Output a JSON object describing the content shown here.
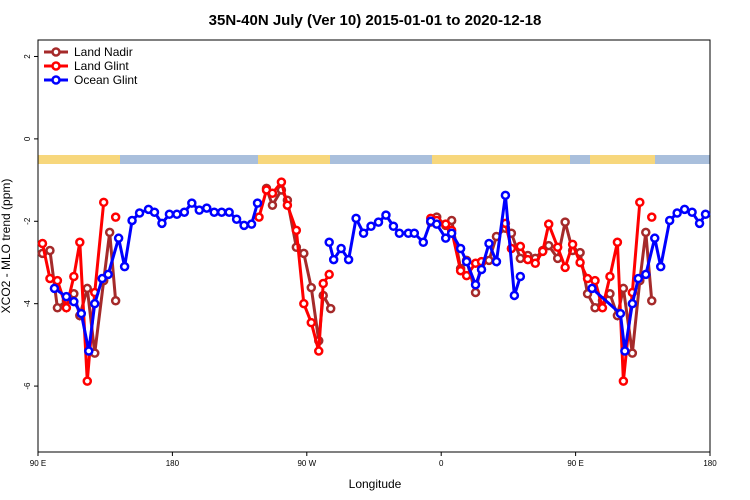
{
  "chart_data": {
    "type": "line",
    "title": "35N-40N July (Ver 10)   2015-01-01 to 2020-12-18",
    "x_label": "Longitude",
    "y_label": "XCO2 - MLO trend (ppm)",
    "xlim": [
      90,
      540
    ],
    "ylim": [
      -7.6,
      2.4
    ],
    "xticks": [
      {
        "value": 90,
        "label": "90 E"
      },
      180,
      {
        "value": 270,
        "label": "90 W"
      },
      {
        "value": 360,
        "label": "0"
      },
      {
        "value": 450,
        "label": "90 E"
      },
      {
        "value": 540,
        "label": "180"
      }
    ],
    "yticks": [
      -6,
      -4,
      -2,
      0,
      2
    ],
    "legend": "top-left",
    "series": [
      {
        "name": "Land Nadir",
        "color": "#a52a2a",
        "x": [
          93,
          98,
          103,
          109,
          114,
          118,
          123,
          128,
          134,
          138,
          142,
          null,
          243,
          247,
          253,
          257,
          263,
          268,
          273,
          278,
          281,
          286,
          null,
          353,
          357,
          363,
          367,
          373,
          377,
          383,
          387,
          392,
          397,
          403,
          407,
          413,
          418,
          423,
          428,
          432,
          438,
          443,
          448,
          453,
          458,
          463,
          468,
          473,
          478,
          482,
          488,
          493,
          497,
          501
        ],
        "values": [
          -2.78,
          -2.71,
          -4.1,
          -3.93,
          -3.76,
          -4.29,
          -3.63,
          -5.2,
          -3.44,
          -2.27,
          -3.93,
          null,
          -1.2,
          -1.61,
          -1.24,
          -1.49,
          -2.63,
          -2.78,
          -3.61,
          -4.9,
          -3.8,
          -4.12,
          null,
          -2.02,
          -1.9,
          -2.1,
          -1.98,
          -3.15,
          -2.95,
          -3.73,
          -3.0,
          -2.95,
          -2.37,
          -2.17,
          -2.29,
          -2.9,
          -2.83,
          -2.9,
          -2.71,
          -2.59,
          -2.9,
          -2.02,
          -2.71,
          -2.76,
          -3.76,
          -4.1,
          -3.93,
          -3.76,
          -4.29,
          -3.63,
          -5.2,
          -3.44,
          -2.27,
          -3.93
        ]
      },
      {
        "name": "Land Glint",
        "color": "#ff0000",
        "x": [
          93,
          98,
          103,
          109,
          114,
          118,
          123,
          128,
          134,
          null,
          142,
          null,
          238,
          243,
          247,
          253,
          257,
          263,
          268,
          273,
          278,
          281,
          285,
          null,
          353,
          357,
          363,
          367,
          373,
          377,
          383,
          387,
          null,
          403,
          407,
          413,
          418,
          423,
          428,
          432,
          438,
          443,
          448,
          453,
          458,
          463,
          468,
          473,
          478,
          482,
          488,
          493,
          null,
          501
        ],
        "values": [
          -2.54,
          -3.39,
          -3.44,
          -4.1,
          -3.34,
          -2.51,
          -5.88,
          -3.73,
          -1.54,
          null,
          -1.9,
          null,
          -1.9,
          -1.24,
          -1.32,
          -1.05,
          -1.61,
          -2.22,
          -4.0,
          -4.46,
          -5.15,
          -3.51,
          -3.29,
          null,
          -1.93,
          -1.98,
          -2.07,
          -2.22,
          -3.2,
          -3.32,
          -3.02,
          -2.98,
          null,
          -2.05,
          -2.66,
          -2.61,
          -2.93,
          -3.02,
          -2.73,
          -2.07,
          -2.63,
          -3.12,
          -2.56,
          -3.0,
          -3.39,
          -3.44,
          -4.1,
          -3.34,
          -2.51,
          -5.88,
          -3.73,
          -1.54,
          null,
          -1.9
        ]
      },
      {
        "name": "Ocean Glint",
        "color": "#0000ff",
        "x": [
          101,
          109,
          114,
          119,
          124,
          128,
          133,
          137,
          144,
          148,
          153,
          158,
          164,
          168,
          173,
          178,
          183,
          188,
          193,
          198,
          203,
          208,
          213,
          218,
          223,
          228,
          233,
          237,
          null,
          285,
          288,
          293,
          298,
          303,
          308,
          313,
          318,
          323,
          328,
          332,
          338,
          342,
          348,
          353,
          357,
          363,
          367,
          373,
          377,
          383,
          387,
          392,
          397,
          403,
          409,
          413,
          null,
          461,
          480,
          483,
          488,
          492,
          497,
          503,
          507,
          513,
          518,
          523,
          528,
          533,
          537
        ],
        "values": [
          -3.63,
          -3.83,
          -3.95,
          -4.24,
          -5.15,
          -4.0,
          -3.39,
          -3.29,
          -2.41,
          -3.1,
          -1.98,
          -1.8,
          -1.71,
          -1.78,
          -2.05,
          -1.83,
          -1.83,
          -1.78,
          -1.56,
          -1.73,
          -1.68,
          -1.78,
          -1.78,
          -1.78,
          -1.95,
          -2.1,
          -2.07,
          -1.56,
          null,
          -2.51,
          -2.93,
          -2.66,
          -2.93,
          -1.93,
          -2.29,
          -2.12,
          -2.02,
          -1.85,
          -2.12,
          -2.29,
          -2.29,
          -2.29,
          -2.51,
          -2.0,
          -2.07,
          -2.41,
          -2.29,
          -2.66,
          -2.98,
          -3.54,
          -3.17,
          -2.54,
          -2.98,
          -1.37,
          -3.8,
          -3.34,
          null,
          -3.63,
          -4.24,
          -5.15,
          -4.0,
          -3.39,
          -3.29,
          -2.41,
          -3.1,
          -1.98,
          -1.8,
          -1.71,
          -1.78,
          -2.05,
          -1.83
        ]
      }
    ]
  }
}
